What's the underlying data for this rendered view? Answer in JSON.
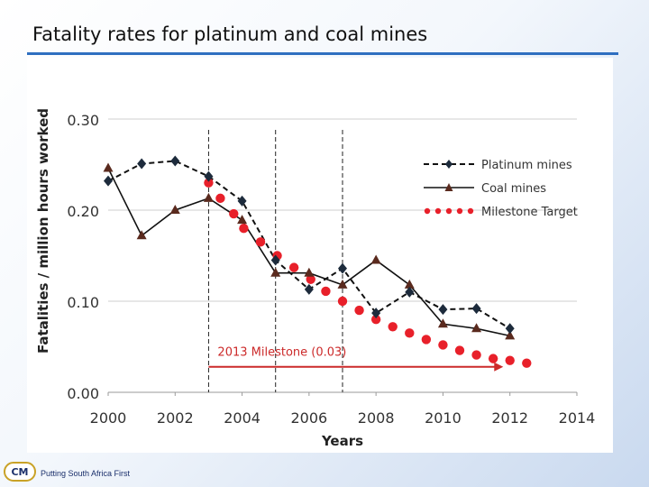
{
  "slide": {
    "title": "Fatality rates for platinum and coal mines",
    "footer_text": "Putting South Africa First",
    "logo_text": "CM"
  },
  "colors": {
    "title_rule": "#2f6fc0",
    "platinum": "#111111",
    "coal": "#111111",
    "coal_marker": "#5a2a1e",
    "milestone": "#e8202a",
    "milestone_arrow": "#cc2a2a"
  },
  "chart_data": {
    "type": "line",
    "title": "",
    "xlabel": "Years",
    "ylabel": "Fatalities / million hours worked",
    "xlim": [
      2000,
      2014
    ],
    "ylim": [
      0,
      0.3
    ],
    "x_ticks": [
      "2000",
      "2002",
      "2004",
      "2006",
      "2008",
      "2010",
      "2012",
      "2014"
    ],
    "y_ticks": [
      "0.00",
      "0.10",
      "0.20",
      "0.30"
    ],
    "grid": "horizontal",
    "legend_position": "top-right",
    "series": [
      {
        "name": "Platinum mines",
        "style": "dashed",
        "marker": "diamond",
        "x": [
          2000,
          2001,
          2002,
          2003,
          2004,
          2005,
          2006,
          2007,
          2008,
          2009,
          2010,
          2011,
          2012
        ],
        "values": [
          0.232,
          0.251,
          0.254,
          0.237,
          0.21,
          0.145,
          0.113,
          0.136,
          0.087,
          0.11,
          0.091,
          0.092,
          0.07
        ]
      },
      {
        "name": "Coal mines",
        "style": "solid",
        "marker": "triangle",
        "x": [
          2000,
          2001,
          2002,
          2003,
          2004,
          2005,
          2006,
          2007,
          2008,
          2009,
          2010,
          2011,
          2012
        ],
        "values": [
          0.246,
          0.172,
          0.2,
          0.213,
          0.189,
          0.131,
          0.131,
          0.118,
          0.145,
          0.118,
          0.075,
          0.07,
          0.062
        ]
      },
      {
        "name": "Milestone Target",
        "style": "dotted",
        "marker": "circle",
        "x": [
          2003,
          2003.35,
          2003.75,
          2004.05,
          2004.55,
          2005.05,
          2005.55,
          2006.05,
          2006.5,
          2007.0,
          2007.5,
          2008.0,
          2008.5,
          2009.0,
          2009.5,
          2010.0,
          2010.5,
          2011.0,
          2011.5,
          2012.0,
          2012.5
        ],
        "values": [
          0.23,
          0.213,
          0.196,
          0.18,
          0.165,
          0.15,
          0.137,
          0.124,
          0.111,
          0.1,
          0.09,
          0.08,
          0.072,
          0.065,
          0.058,
          0.052,
          0.046,
          0.041,
          0.037,
          0.035,
          0.032
        ]
      }
    ],
    "vertical_markers": [
      2003,
      2005,
      2007
    ],
    "annotation": {
      "text": "2013 Milestone (0.03)",
      "arrow_from_x": 2003,
      "arrow_to_x": 2011.8,
      "y": 0.028
    }
  }
}
